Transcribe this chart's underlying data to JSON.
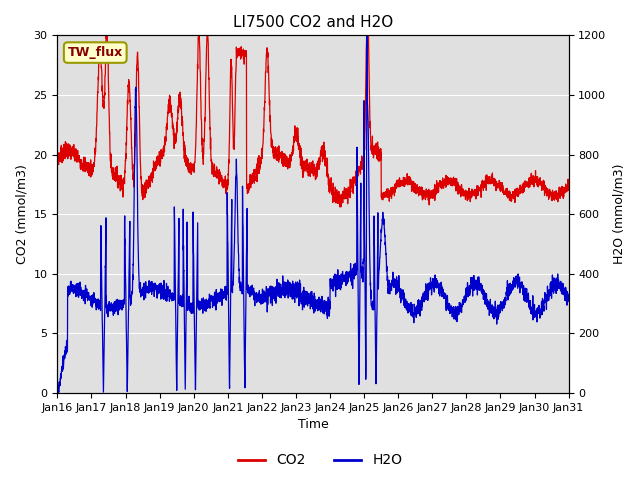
{
  "title": "LI7500 CO2 and H2O",
  "xlabel": "Time",
  "ylabel_left": "CO2 (mmol/m3)",
  "ylabel_right": "H2O (mmol/m3)",
  "xlim": [
    0,
    15
  ],
  "ylim_left": [
    0,
    30
  ],
  "ylim_right": [
    0,
    1200
  ],
  "xtick_labels": [
    "Jan 16",
    "Jan 17",
    "Jan 18",
    "Jan 19",
    "Jan 20",
    "Jan 21",
    "Jan 22",
    "Jan 23",
    "Jan 24",
    "Jan 25",
    "Jan 26",
    "Jan 27",
    "Jan 28",
    "Jan 29",
    "Jan 30",
    "Jan 31"
  ],
  "label_box_text": "TW_flux",
  "label_box_color": "#ffffcc",
  "label_box_edge": "#999900",
  "co2_color": "#dd0000",
  "h2o_color": "#0000cc",
  "background_color": "#e0e0e0",
  "legend_co2": "CO2",
  "legend_h2o": "H2O",
  "title_fontsize": 11,
  "axis_fontsize": 9,
  "tick_fontsize": 8
}
